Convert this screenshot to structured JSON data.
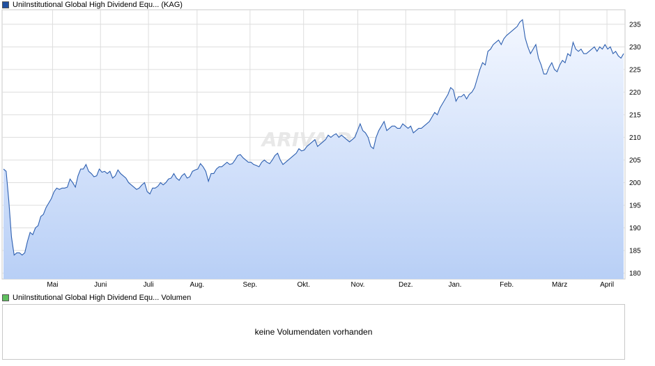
{
  "price_legend": {
    "label": "UniInstitutional Global High Dividend Equ... (KAG)",
    "color": "#1f4fa0"
  },
  "volume_legend": {
    "label": "UniInstitutional Global High Dividend Equ... Volumen",
    "color": "#5fbf5f"
  },
  "volume_panel": {
    "message": "keine Volumendaten vorhanden"
  },
  "watermark": "ARIVA.DE",
  "chart_data": {
    "type": "area",
    "x_ticks": [
      "Mai",
      "Juni",
      "Juli",
      "Aug.",
      "Sep.",
      "Okt.",
      "Nov.",
      "Dez.",
      "Jan.",
      "Feb.",
      "März",
      "April"
    ],
    "y_ticks": [
      180,
      185,
      190,
      195,
      200,
      205,
      210,
      215,
      220,
      225,
      230,
      235
    ],
    "ylim": [
      178.7,
      238.2
    ],
    "grid": true,
    "line_color": "#2d5fb0",
    "fill_top_color": "#f3f7ff",
    "fill_bottom_color": "#b8cff6",
    "series": [
      {
        "points": [
          [
            "Apr 01",
            203.0
          ],
          [
            "Apr 02",
            202.5
          ],
          [
            "Apr 03",
            196.0
          ],
          [
            "Apr 04",
            188.0
          ],
          [
            "Apr 05",
            184.0
          ],
          [
            "Apr 08",
            184.5
          ],
          [
            "Apr 09",
            184.5
          ],
          [
            "Apr 10",
            184.0
          ],
          [
            "Apr 11",
            184.5
          ],
          [
            "Apr 12",
            187.0
          ],
          [
            "Apr 15",
            189.0
          ],
          [
            "Apr 16",
            188.5
          ],
          [
            "Apr 17",
            190.0
          ],
          [
            "Apr 18",
            190.5
          ],
          [
            "Apr 19",
            192.5
          ],
          [
            "Apr 22",
            193.0
          ],
          [
            "Apr 23",
            194.5
          ],
          [
            "Apr 24",
            195.5
          ],
          [
            "Apr 25",
            196.5
          ],
          [
            "Apr 26",
            198.0
          ],
          [
            "Apr 29",
            198.8
          ],
          [
            "Apr 30",
            198.5
          ],
          [
            "May 02",
            198.8
          ],
          [
            "May 03",
            198.8
          ],
          [
            "May 06",
            199.0
          ],
          [
            "May 07",
            200.8
          ],
          [
            "May 08",
            200.0
          ],
          [
            "May 09",
            199.0
          ],
          [
            "May 10",
            201.5
          ],
          [
            "May 13",
            203.0
          ],
          [
            "May 14",
            203.0
          ],
          [
            "May 15",
            204.0
          ],
          [
            "May 16",
            202.5
          ],
          [
            "May 17",
            202.0
          ],
          [
            "May 20",
            201.3
          ],
          [
            "May 21",
            201.5
          ],
          [
            "May 22",
            203.0
          ],
          [
            "May 23",
            202.3
          ],
          [
            "May 24",
            202.5
          ],
          [
            "May 27",
            202.0
          ],
          [
            "May 28",
            202.5
          ],
          [
            "May 29",
            201.0
          ],
          [
            "May 30",
            201.5
          ],
          [
            "May 31",
            202.8
          ],
          [
            "Jun 03",
            202.0
          ],
          [
            "Jun 04",
            201.5
          ],
          [
            "Jun 05",
            201.0
          ],
          [
            "Jun 06",
            200.0
          ],
          [
            "Jun 07",
            199.5
          ],
          [
            "Jun 10",
            199.0
          ],
          [
            "Jun 11",
            198.5
          ],
          [
            "Jun 12",
            198.8
          ],
          [
            "Jun 13",
            199.5
          ],
          [
            "Jun 14",
            200.0
          ],
          [
            "Jun 17",
            198.0
          ],
          [
            "Jun 18",
            197.5
          ],
          [
            "Jun 19",
            198.8
          ],
          [
            "Jun 20",
            198.8
          ],
          [
            "Jun 21",
            199.2
          ],
          [
            "Jun 24",
            200.0
          ],
          [
            "Jun 25",
            199.5
          ],
          [
            "Jun 26",
            200.0
          ],
          [
            "Jun 27",
            200.8
          ],
          [
            "Jun 28",
            201.0
          ],
          [
            "Jul 01",
            202.0
          ],
          [
            "Jul 02",
            201.0
          ],
          [
            "Jul 03",
            200.5
          ],
          [
            "Jul 04",
            201.5
          ],
          [
            "Jul 05",
            202.0
          ],
          [
            "Jul 08",
            201.0
          ],
          [
            "Jul 09",
            201.3
          ],
          [
            "Jul 10",
            202.5
          ],
          [
            "Jul 11",
            202.8
          ],
          [
            "Jul 12",
            203.0
          ],
          [
            "Jul 15",
            204.2
          ],
          [
            "Jul 16",
            203.5
          ],
          [
            "Jul 17",
            202.5
          ],
          [
            "Jul 18",
            200.3
          ],
          [
            "Jul 19",
            202.0
          ],
          [
            "Jul 22",
            202.0
          ],
          [
            "Jul 23",
            203.0
          ],
          [
            "Jul 24",
            203.5
          ],
          [
            "Jul 25",
            203.5
          ],
          [
            "Jul 26",
            204.0
          ],
          [
            "Jul 29",
            204.5
          ],
          [
            "Jul 30",
            204.0
          ],
          [
            "Jul 31",
            204.2
          ],
          [
            "Aug 01",
            205.0
          ],
          [
            "Aug 02",
            206.0
          ],
          [
            "Aug 05",
            206.2
          ],
          [
            "Aug 06",
            205.5
          ],
          [
            "Aug 07",
            205.0
          ],
          [
            "Aug 08",
            204.5
          ],
          [
            "Aug 09",
            204.5
          ],
          [
            "Aug 12",
            204.0
          ],
          [
            "Aug 13",
            203.8
          ],
          [
            "Aug 14",
            203.5
          ],
          [
            "Aug 15",
            204.5
          ],
          [
            "Aug 16",
            205.0
          ],
          [
            "Aug 19",
            204.5
          ],
          [
            "Aug 20",
            204.2
          ],
          [
            "Aug 21",
            205.0
          ],
          [
            "Aug 22",
            206.0
          ],
          [
            "Aug 23",
            206.5
          ],
          [
            "Aug 26",
            205.0
          ],
          [
            "Aug 27",
            204.0
          ],
          [
            "Aug 28",
            204.5
          ],
          [
            "Aug 29",
            205.0
          ],
          [
            "Aug 30",
            205.5
          ],
          [
            "Sep 02",
            206.0
          ],
          [
            "Sep 03",
            206.5
          ],
          [
            "Sep 04",
            207.5
          ],
          [
            "Sep 05",
            207.0
          ],
          [
            "Sep 06",
            207.2
          ],
          [
            "Sep 09",
            208.0
          ],
          [
            "Sep 10",
            208.5
          ],
          [
            "Sep 11",
            209.0
          ],
          [
            "Sep 12",
            209.5
          ],
          [
            "Sep 13",
            208.0
          ],
          [
            "Sep 16",
            208.5
          ],
          [
            "Sep 17",
            209.0
          ],
          [
            "Sep 18",
            209.5
          ],
          [
            "Sep 19",
            210.5
          ],
          [
            "Sep 20",
            210.0
          ],
          [
            "Sep 23",
            210.5
          ],
          [
            "Sep 24",
            210.8
          ],
          [
            "Sep 25",
            210.0
          ],
          [
            "Sep 26",
            210.5
          ],
          [
            "Sep 27",
            210.0
          ],
          [
            "Sep 30",
            209.5
          ],
          [
            "Oct 01",
            209.0
          ],
          [
            "Oct 02",
            209.5
          ],
          [
            "Oct 03",
            210.0
          ],
          [
            "Oct 04",
            211.5
          ],
          [
            "Oct 07",
            213.0
          ],
          [
            "Oct 08",
            211.5
          ],
          [
            "Oct 09",
            211.0
          ],
          [
            "Oct 10",
            210.0
          ],
          [
            "Oct 11",
            208.0
          ],
          [
            "Oct 14",
            207.5
          ],
          [
            "Oct 15",
            210.0
          ],
          [
            "Oct 16",
            211.5
          ],
          [
            "Oct 17",
            212.5
          ],
          [
            "Oct 18",
            213.5
          ],
          [
            "Oct 21",
            211.5
          ],
          [
            "Oct 22",
            212.0
          ],
          [
            "Oct 23",
            212.5
          ],
          [
            "Oct 24",
            212.5
          ],
          [
            "Oct 25",
            212.0
          ],
          [
            "Oct 28",
            212.0
          ],
          [
            "Oct 29",
            213.0
          ],
          [
            "Oct 30",
            212.5
          ],
          [
            "Oct 31",
            212.0
          ],
          [
            "Nov 01",
            212.5
          ],
          [
            "Nov 04",
            211.0
          ],
          [
            "Nov 05",
            211.5
          ],
          [
            "Nov 06",
            212.0
          ],
          [
            "Nov 07",
            212.0
          ],
          [
            "Nov 08",
            212.5
          ],
          [
            "Nov 11",
            213.0
          ],
          [
            "Nov 12",
            213.5
          ],
          [
            "Nov 13",
            214.5
          ],
          [
            "Nov 14",
            215.5
          ],
          [
            "Nov 15",
            215.0
          ],
          [
            "Nov 18",
            216.5
          ],
          [
            "Nov 19",
            217.5
          ],
          [
            "Nov 20",
            218.5
          ],
          [
            "Nov 21",
            219.5
          ],
          [
            "Nov 22",
            221.0
          ],
          [
            "Nov 25",
            220.5
          ],
          [
            "Nov 26",
            218.0
          ],
          [
            "Nov 27",
            219.0
          ],
          [
            "Nov 28",
            219.0
          ],
          [
            "Nov 29",
            219.5
          ],
          [
            "Dec 02",
            218.5
          ],
          [
            "Dec 03",
            219.5
          ],
          [
            "Dec 04",
            220.0
          ],
          [
            "Dec 05",
            221.0
          ],
          [
            "Dec 06",
            223.0
          ],
          [
            "Dec 09",
            225.0
          ],
          [
            "Dec 10",
            226.5
          ],
          [
            "Dec 11",
            226.0
          ],
          [
            "Dec 12",
            229.0
          ],
          [
            "Dec 13",
            229.5
          ],
          [
            "Dec 16",
            230.5
          ],
          [
            "Dec 17",
            231.0
          ],
          [
            "Dec 18",
            231.5
          ],
          [
            "Dec 19",
            230.5
          ],
          [
            "Dec 20",
            231.8
          ],
          [
            "Dec 23",
            232.5
          ],
          [
            "Dec 27",
            233.0
          ],
          [
            "Dec 30",
            233.5
          ],
          [
            "Jan 02",
            234.0
          ],
          [
            "Jan 03",
            234.5
          ],
          [
            "Jan 06",
            235.5
          ],
          [
            "Jan 07",
            236.0
          ],
          [
            "Jan 08",
            232.0
          ],
          [
            "Jan 09",
            230.0
          ],
          [
            "Jan 10",
            228.5
          ],
          [
            "Jan 13",
            229.5
          ],
          [
            "Jan 14",
            230.5
          ],
          [
            "Jan 15",
            227.5
          ],
          [
            "Jan 16",
            226.0
          ],
          [
            "Jan 17",
            224.0
          ],
          [
            "Jan 20",
            224.0
          ],
          [
            "Jan 21",
            225.5
          ],
          [
            "Jan 22",
            226.5
          ],
          [
            "Jan 23",
            225.0
          ],
          [
            "Jan 24",
            224.5
          ],
          [
            "Jan 27",
            226.0
          ],
          [
            "Jan 28",
            227.0
          ],
          [
            "Jan 29",
            226.5
          ],
          [
            "Jan 30",
            228.5
          ],
          [
            "Jan 31",
            228.0
          ],
          [
            "Feb 03",
            231.0
          ],
          [
            "Feb 04",
            229.5
          ],
          [
            "Feb 05",
            229.0
          ],
          [
            "Feb 06",
            229.5
          ],
          [
            "Feb 07",
            228.5
          ],
          [
            "Feb 10",
            228.5
          ],
          [
            "Feb 11",
            229.0
          ],
          [
            "Feb 12",
            229.5
          ],
          [
            "Feb 13",
            230.0
          ],
          [
            "Feb 14",
            229.0
          ],
          [
            "Feb 17",
            230.0
          ],
          [
            "Feb 18",
            229.5
          ],
          [
            "Feb 19",
            230.5
          ],
          [
            "Feb 20",
            229.5
          ],
          [
            "Feb 21",
            230.0
          ],
          [
            "Feb 24",
            228.5
          ],
          [
            "Feb 25",
            229.0
          ],
          [
            "Feb 26",
            228.0
          ],
          [
            "Feb 27",
            227.5
          ],
          [
            "Feb 28",
            228.5
          ]
        ]
      }
    ]
  }
}
